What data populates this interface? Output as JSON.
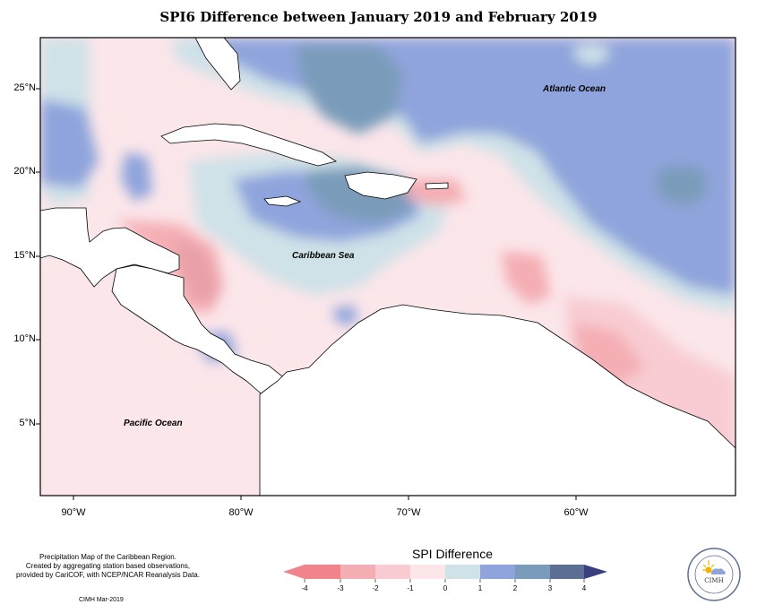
{
  "title": "SPI6 Difference between January 2019 and February 2019",
  "map": {
    "latitude_labels": [
      "25°N",
      "20°N",
      "15°N",
      "10°N",
      "5°N"
    ],
    "longitude_labels": [
      "90°W",
      "80°W",
      "70°W",
      "60°W"
    ],
    "region_labels": {
      "atlantic": "Atlantic Ocean",
      "caribbean": "Caribbean Sea",
      "pacific": "Pacific Ocean"
    }
  },
  "legend": {
    "title": "SPI Difference",
    "ticks": [
      "-4",
      "-3",
      "-2",
      "-1",
      "0",
      "1",
      "2",
      "3",
      "4"
    ],
    "colors": [
      "#f0838c",
      "#f4aeb4",
      "#f8ccd2",
      "#fce6ea",
      "#cfe2e8",
      "#8fa4dc",
      "#7a9cba",
      "#5b6f93"
    ]
  },
  "credits": {
    "lines": [
      "Precipitation Map of the Caribbean Region.",
      "Created by aggregating station based observations,",
      "provided by CariCOF, with NCEP/NCAR Reanalysis Data."
    ],
    "date": "CIMH Mar-2019"
  },
  "logo": {
    "text": "CIMH",
    "icon": "cimh-sun-logo-icon"
  }
}
